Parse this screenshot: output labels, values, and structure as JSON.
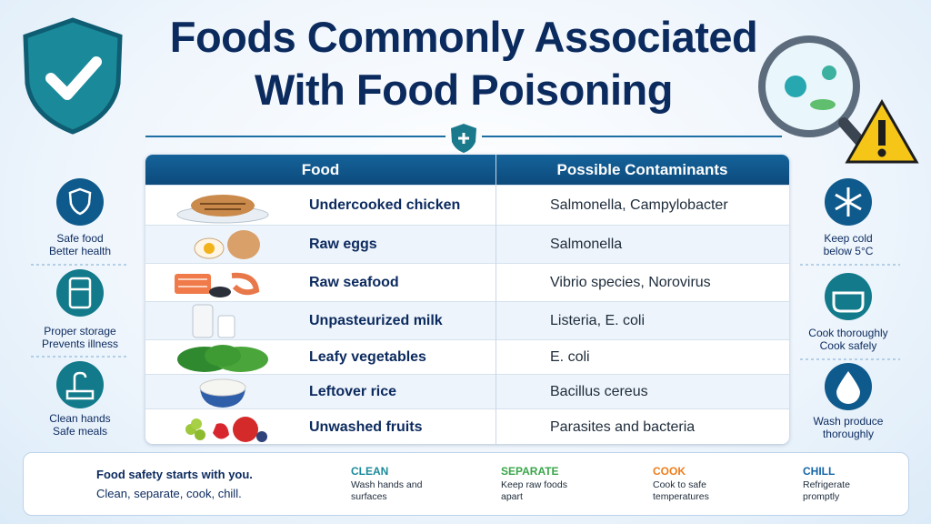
{
  "header": {
    "title_lines": [
      "Foods Commonly Associated",
      "With Food Poisoning"
    ]
  },
  "table": {
    "columns": [
      "Food",
      "Possible Contaminants"
    ],
    "rows": [
      [
        "Undercooked chicken",
        "Salmonella, Campylobacter"
      ],
      [
        "Raw eggs",
        "Salmonella"
      ],
      [
        "Raw seafood",
        "Vibrio species, Norovirus"
      ],
      [
        "Unpasteurized milk",
        "Listeria, E. coli"
      ],
      [
        "Leafy vegetables",
        "E. coli"
      ],
      [
        "Leftover rice",
        "Bacillus cereus"
      ],
      [
        "Unwashed fruits",
        "Parasites and bacteria"
      ]
    ]
  },
  "left_tips": [
    [
      "Safe food",
      "Better health"
    ],
    [
      "Proper storage",
      "Prevents illness"
    ],
    [
      "Clean hands",
      "Safe meals"
    ]
  ],
  "right_tips": [
    [
      "Keep cold",
      "below 5°C"
    ],
    [
      "Cook thoroughly",
      "Cook safely"
    ],
    [
      "Wash produce",
      "thoroughly"
    ]
  ],
  "footer": {
    "motto": [
      "Food safety starts with you.",
      "Clean, separate, cook, chill."
    ],
    "steps": [
      {
        "title": "CLEAN",
        "text": [
          "Wash hands and",
          "surfaces"
        ]
      },
      {
        "title": "SEPARATE",
        "text": [
          "Keep raw foods",
          "apart"
        ]
      },
      {
        "title": "COOK",
        "text": [
          "Cook to safe",
          "temperatures"
        ]
      },
      {
        "title": "CHILL",
        "text": [
          "Refrigerate",
          "promptly"
        ]
      }
    ]
  }
}
